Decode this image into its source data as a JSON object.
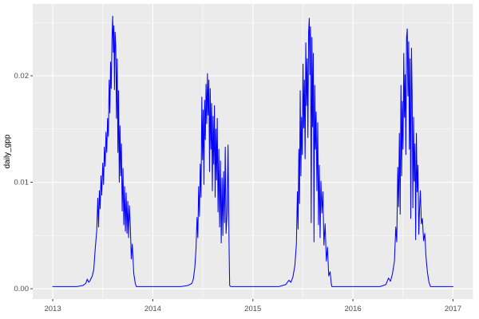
{
  "figure": {
    "background": "#FFFFFF"
  },
  "chart_data": {
    "type": "line",
    "title": "",
    "xlabel": "",
    "ylabel": "daily_gpp",
    "legend": null,
    "grid": "on",
    "panel_bg": "#EBEBEB",
    "grid_color": "#FFFFFF",
    "line_color": "#0404F8",
    "tick_mark_color": "#333333",
    "tick_label_color": "#4D4D4D",
    "axis_title_color": "#000000",
    "x_range": [
      2012.8,
      2017.2
    ],
    "y_range": [
      -0.00097,
      0.02674
    ],
    "x_ticks": [
      {
        "v": 2013,
        "label": "2013"
      },
      {
        "v": 2014,
        "label": "2014"
      },
      {
        "v": 2015,
        "label": "2015"
      },
      {
        "v": 2016,
        "label": "2016"
      },
      {
        "v": 2017,
        "label": "2017"
      }
    ],
    "y_ticks": [
      {
        "v": 0.0,
        "label": "0.00"
      },
      {
        "v": 0.01,
        "label": "0.01"
      },
      {
        "v": 0.02,
        "label": "0.02"
      }
    ],
    "x_minor": [
      2013.5,
      2014.5,
      2015.5,
      2016.5
    ],
    "y_minor": [
      0.005,
      0.015,
      0.025
    ],
    "series": [
      {
        "name": "daily_gpp",
        "points": [
          [
            2013.0,
            0.0002
          ],
          [
            2013.08,
            0.0002
          ],
          [
            2013.16,
            0.0002
          ],
          [
            2013.24,
            0.0002
          ],
          [
            2013.3,
            0.0003
          ],
          [
            2013.33,
            0.0005
          ],
          [
            2013.345,
            0.0009
          ],
          [
            2013.36,
            0.0006
          ],
          [
            2013.375,
            0.0008
          ],
          [
            2013.395,
            0.0012
          ],
          [
            2013.41,
            0.0018
          ],
          [
            2013.425,
            0.0038
          ],
          [
            2013.44,
            0.0055
          ],
          [
            2013.45,
            0.0085
          ],
          [
            2013.458,
            0.0058
          ],
          [
            2013.466,
            0.0092
          ],
          [
            2013.474,
            0.0075
          ],
          [
            2013.482,
            0.0106
          ],
          [
            2013.49,
            0.0088
          ],
          [
            2013.5,
            0.0118
          ],
          [
            2013.508,
            0.0098
          ],
          [
            2013.516,
            0.0133
          ],
          [
            2013.524,
            0.0115
          ],
          [
            2013.532,
            0.0147
          ],
          [
            2013.54,
            0.0128
          ],
          [
            2013.548,
            0.016
          ],
          [
            2013.556,
            0.0143
          ],
          [
            2013.564,
            0.0196
          ],
          [
            2013.571,
            0.0165
          ],
          [
            2013.578,
            0.0213
          ],
          [
            2013.585,
            0.0188
          ],
          [
            2013.592,
            0.0235
          ],
          [
            2013.599,
            0.0256
          ],
          [
            2013.605,
            0.0222
          ],
          [
            2013.611,
            0.0247
          ],
          [
            2013.617,
            0.0187
          ],
          [
            2013.623,
            0.0241
          ],
          [
            2013.63,
            0.0228
          ],
          [
            2013.637,
            0.016
          ],
          [
            2013.644,
            0.0216
          ],
          [
            2013.651,
            0.0128
          ],
          [
            2013.658,
            0.0186
          ],
          [
            2013.665,
            0.01
          ],
          [
            2013.672,
            0.0153
          ],
          [
            2013.679,
            0.0106
          ],
          [
            2013.686,
            0.0136
          ],
          [
            2013.694,
            0.0073
          ],
          [
            2013.702,
            0.0113
          ],
          [
            2013.71,
            0.006
          ],
          [
            2013.718,
            0.0096
          ],
          [
            2013.726,
            0.0054
          ],
          [
            2013.734,
            0.009
          ],
          [
            2013.742,
            0.0052
          ],
          [
            2013.75,
            0.0082
          ],
          [
            2013.758,
            0.0048
          ],
          [
            2013.766,
            0.0078
          ],
          [
            2013.775,
            0.006
          ],
          [
            2013.785,
            0.0028
          ],
          [
            2013.795,
            0.0042
          ],
          [
            2013.81,
            0.0014
          ],
          [
            2013.825,
            0.0005
          ],
          [
            2013.835,
            0.0002
          ],
          [
            2013.9,
            0.0002
          ],
          [
            2013.96,
            0.0002
          ],
          [
            2014.04,
            0.0002
          ],
          [
            2014.12,
            0.0002
          ],
          [
            2014.2,
            0.0002
          ],
          [
            2014.28,
            0.0002
          ],
          [
            2014.35,
            0.0003
          ],
          [
            2014.39,
            0.0005
          ],
          [
            2014.405,
            0.0009
          ],
          [
            2014.42,
            0.002
          ],
          [
            2014.432,
            0.0038
          ],
          [
            2014.442,
            0.0067
          ],
          [
            2014.45,
            0.0048
          ],
          [
            2014.458,
            0.0096
          ],
          [
            2014.466,
            0.0068
          ],
          [
            2014.474,
            0.0117
          ],
          [
            2014.482,
            0.0086
          ],
          [
            2014.49,
            0.018
          ],
          [
            2014.497,
            0.0121
          ],
          [
            2014.504,
            0.0168
          ],
          [
            2014.511,
            0.0098
          ],
          [
            2014.518,
            0.0177
          ],
          [
            2014.525,
            0.014
          ],
          [
            2014.532,
            0.0192
          ],
          [
            2014.539,
            0.0155
          ],
          [
            2014.546,
            0.0202
          ],
          [
            2014.553,
            0.0163
          ],
          [
            2014.56,
            0.0196
          ],
          [
            2014.567,
            0.011
          ],
          [
            2014.574,
            0.0188
          ],
          [
            2014.581,
            0.0131
          ],
          [
            2014.588,
            0.0174
          ],
          [
            2014.595,
            0.0092
          ],
          [
            2014.602,
            0.0162
          ],
          [
            2014.609,
            0.0117
          ],
          [
            2014.616,
            0.0172
          ],
          [
            2014.623,
            0.0086
          ],
          [
            2014.63,
            0.015
          ],
          [
            2014.637,
            0.0102
          ],
          [
            2014.644,
            0.016
          ],
          [
            2014.652,
            0.0072
          ],
          [
            2014.66,
            0.0131
          ],
          [
            2014.668,
            0.0058
          ],
          [
            2014.676,
            0.012
          ],
          [
            2014.684,
            0.0043
          ],
          [
            2014.692,
            0.0104
          ],
          [
            2014.7,
            0.005
          ],
          [
            2014.708,
            0.011
          ],
          [
            2014.716,
            0.0062
          ],
          [
            2014.724,
            0.0133
          ],
          [
            2014.732,
            0.0052
          ],
          [
            2014.742,
            0.007
          ],
          [
            2014.752,
            0.0135
          ],
          [
            2014.762,
            0.0042
          ],
          [
            2014.768,
            0.0003
          ],
          [
            2014.78,
            0.0002
          ],
          [
            2014.86,
            0.0002
          ],
          [
            2014.94,
            0.0002
          ],
          [
            2015.02,
            0.0002
          ],
          [
            2015.1,
            0.0002
          ],
          [
            2015.18,
            0.0002
          ],
          [
            2015.26,
            0.0002
          ],
          [
            2015.33,
            0.0004
          ],
          [
            2015.36,
            0.0008
          ],
          [
            2015.38,
            0.0006
          ],
          [
            2015.4,
            0.0011
          ],
          [
            2015.42,
            0.0022
          ],
          [
            2015.435,
            0.0042
          ],
          [
            2015.445,
            0.0091
          ],
          [
            2015.452,
            0.0056
          ],
          [
            2015.459,
            0.0131
          ],
          [
            2015.466,
            0.008
          ],
          [
            2015.473,
            0.0186
          ],
          [
            2015.48,
            0.0106
          ],
          [
            2015.487,
            0.0161
          ],
          [
            2015.494,
            0.0126
          ],
          [
            2015.501,
            0.0211
          ],
          [
            2015.508,
            0.0151
          ],
          [
            2015.515,
            0.0196
          ],
          [
            2015.522,
            0.0122
          ],
          [
            2015.529,
            0.0231
          ],
          [
            2015.536,
            0.0172
          ],
          [
            2015.543,
            0.0216
          ],
          [
            2015.55,
            0.0142
          ],
          [
            2015.557,
            0.0241
          ],
          [
            2015.564,
            0.0254
          ],
          [
            2015.57,
            0.0201
          ],
          [
            2015.576,
            0.0246
          ],
          [
            2015.583,
            0.0062
          ],
          [
            2015.59,
            0.0236
          ],
          [
            2015.597,
            0.0152
          ],
          [
            2015.604,
            0.0221
          ],
          [
            2015.611,
            0.0044
          ],
          [
            2015.618,
            0.0191
          ],
          [
            2015.625,
            0.0131
          ],
          [
            2015.632,
            0.0166
          ],
          [
            2015.64,
            0.0092
          ],
          [
            2015.648,
            0.0156
          ],
          [
            2015.656,
            0.006
          ],
          [
            2015.664,
            0.0116
          ],
          [
            2015.672,
            0.0048
          ],
          [
            2015.68,
            0.0101
          ],
          [
            2015.69,
            0.0071
          ],
          [
            2015.7,
            0.0091
          ],
          [
            2015.71,
            0.0041
          ],
          [
            2015.722,
            0.0061
          ],
          [
            2015.734,
            0.0026
          ],
          [
            2015.746,
            0.0039
          ],
          [
            2015.758,
            0.0012
          ],
          [
            2015.772,
            0.0016
          ],
          [
            2015.783,
            0.0005
          ],
          [
            2015.79,
            0.0002
          ],
          [
            2015.87,
            0.0002
          ],
          [
            2015.95,
            0.0002
          ],
          [
            2016.03,
            0.0002
          ],
          [
            2016.11,
            0.0002
          ],
          [
            2016.19,
            0.0002
          ],
          [
            2016.27,
            0.0002
          ],
          [
            2016.33,
            0.0004
          ],
          [
            2016.355,
            0.001
          ],
          [
            2016.375,
            0.0007
          ],
          [
            2016.395,
            0.0014
          ],
          [
            2016.415,
            0.0026
          ],
          [
            2016.428,
            0.0058
          ],
          [
            2016.438,
            0.0044
          ],
          [
            2016.448,
            0.0114
          ],
          [
            2016.456,
            0.0077
          ],
          [
            2016.464,
            0.0146
          ],
          [
            2016.472,
            0.007
          ],
          [
            2016.48,
            0.0191
          ],
          [
            2016.487,
            0.0106
          ],
          [
            2016.494,
            0.0176
          ],
          [
            2016.501,
            0.0131
          ],
          [
            2016.508,
            0.0221
          ],
          [
            2016.515,
            0.0161
          ],
          [
            2016.522,
            0.0201
          ],
          [
            2016.529,
            0.0126
          ],
          [
            2016.536,
            0.0236
          ],
          [
            2016.543,
            0.0244
          ],
          [
            2016.55,
            0.0181
          ],
          [
            2016.557,
            0.0232
          ],
          [
            2016.564,
            0.0131
          ],
          [
            2016.571,
            0.0216
          ],
          [
            2016.578,
            0.0066
          ],
          [
            2016.585,
            0.0226
          ],
          [
            2016.592,
            0.0181
          ],
          [
            2016.599,
            0.0076
          ],
          [
            2016.606,
            0.0161
          ],
          [
            2016.613,
            0.0101
          ],
          [
            2016.62,
            0.0136
          ],
          [
            2016.627,
            0.0046
          ],
          [
            2016.634,
            0.0146
          ],
          [
            2016.642,
            0.0091
          ],
          [
            2016.65,
            0.0116
          ],
          [
            2016.658,
            0.0051
          ],
          [
            2016.666,
            0.0076
          ],
          [
            2016.674,
            0.0092
          ],
          [
            2016.684,
            0.0061
          ],
          [
            2016.694,
            0.0066
          ],
          [
            2016.706,
            0.0045
          ],
          [
            2016.718,
            0.0052
          ],
          [
            2016.73,
            0.003
          ],
          [
            2016.745,
            0.0015
          ],
          [
            2016.76,
            0.0006
          ],
          [
            2016.775,
            0.0002
          ],
          [
            2016.85,
            0.0002
          ],
          [
            2016.93,
            0.0002
          ],
          [
            2017.0,
            0.0002
          ]
        ]
      }
    ]
  }
}
